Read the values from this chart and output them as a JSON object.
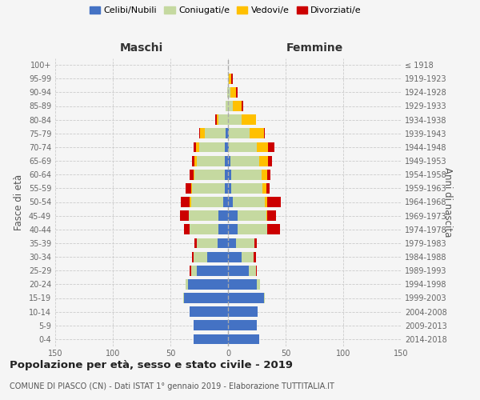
{
  "age_groups": [
    "0-4",
    "5-9",
    "10-14",
    "15-19",
    "20-24",
    "25-29",
    "30-34",
    "35-39",
    "40-44",
    "45-49",
    "50-54",
    "55-59",
    "60-64",
    "65-69",
    "70-74",
    "75-79",
    "80-84",
    "85-89",
    "90-94",
    "95-99",
    "100+"
  ],
  "birth_years": [
    "2014-2018",
    "2009-2013",
    "2004-2008",
    "1999-2003",
    "1994-1998",
    "1989-1993",
    "1984-1988",
    "1979-1983",
    "1974-1978",
    "1969-1973",
    "1964-1968",
    "1959-1963",
    "1954-1958",
    "1949-1953",
    "1944-1948",
    "1939-1943",
    "1934-1938",
    "1929-1933",
    "1924-1928",
    "1919-1923",
    "≤ 1918"
  ],
  "males": {
    "celibi": [
      30,
      30,
      33,
      38,
      35,
      27,
      18,
      9,
      8,
      8,
      4,
      3,
      3,
      3,
      3,
      2,
      0,
      0,
      0,
      0,
      0
    ],
    "coniugati": [
      0,
      0,
      0,
      1,
      2,
      5,
      12,
      18,
      25,
      26,
      28,
      28,
      26,
      24,
      22,
      18,
      8,
      2,
      1,
      0,
      0
    ],
    "vedovi": [
      0,
      0,
      0,
      0,
      0,
      0,
      0,
      0,
      0,
      0,
      1,
      1,
      1,
      2,
      3,
      4,
      2,
      0,
      0,
      0,
      0
    ],
    "divorziati": [
      0,
      0,
      0,
      0,
      0,
      1,
      1,
      2,
      5,
      8,
      8,
      5,
      3,
      2,
      2,
      1,
      1,
      0,
      0,
      0,
      0
    ]
  },
  "females": {
    "nubili": [
      27,
      25,
      26,
      31,
      25,
      18,
      12,
      7,
      8,
      8,
      4,
      3,
      3,
      2,
      1,
      1,
      0,
      0,
      0,
      0,
      0
    ],
    "coniugate": [
      0,
      0,
      0,
      1,
      3,
      6,
      10,
      16,
      26,
      25,
      28,
      27,
      26,
      25,
      24,
      18,
      12,
      4,
      2,
      1,
      0
    ],
    "vedove": [
      0,
      0,
      0,
      0,
      0,
      0,
      0,
      0,
      0,
      1,
      2,
      3,
      5,
      8,
      10,
      12,
      12,
      8,
      5,
      2,
      0
    ],
    "divorziate": [
      0,
      0,
      0,
      0,
      0,
      1,
      2,
      2,
      11,
      8,
      12,
      3,
      3,
      3,
      5,
      1,
      0,
      1,
      1,
      1,
      0
    ]
  },
  "colors": {
    "celibi": "#4472c4",
    "coniugati": "#c5d9a0",
    "vedovi": "#ffc000",
    "divorziati": "#cc0000"
  },
  "title": "Popolazione per età, sesso e stato civile - 2019",
  "subtitle": "COMUNE DI PIASCO (CN) - Dati ISTAT 1° gennaio 2019 - Elaborazione TUTTITALIA.IT",
  "xlabel_left": "Maschi",
  "xlabel_right": "Femmine",
  "ylabel_left": "Fasce di età",
  "ylabel_right": "Anni di nascita",
  "xlim": 150,
  "background_color": "#f5f5f5",
  "grid_color": "#cccccc"
}
